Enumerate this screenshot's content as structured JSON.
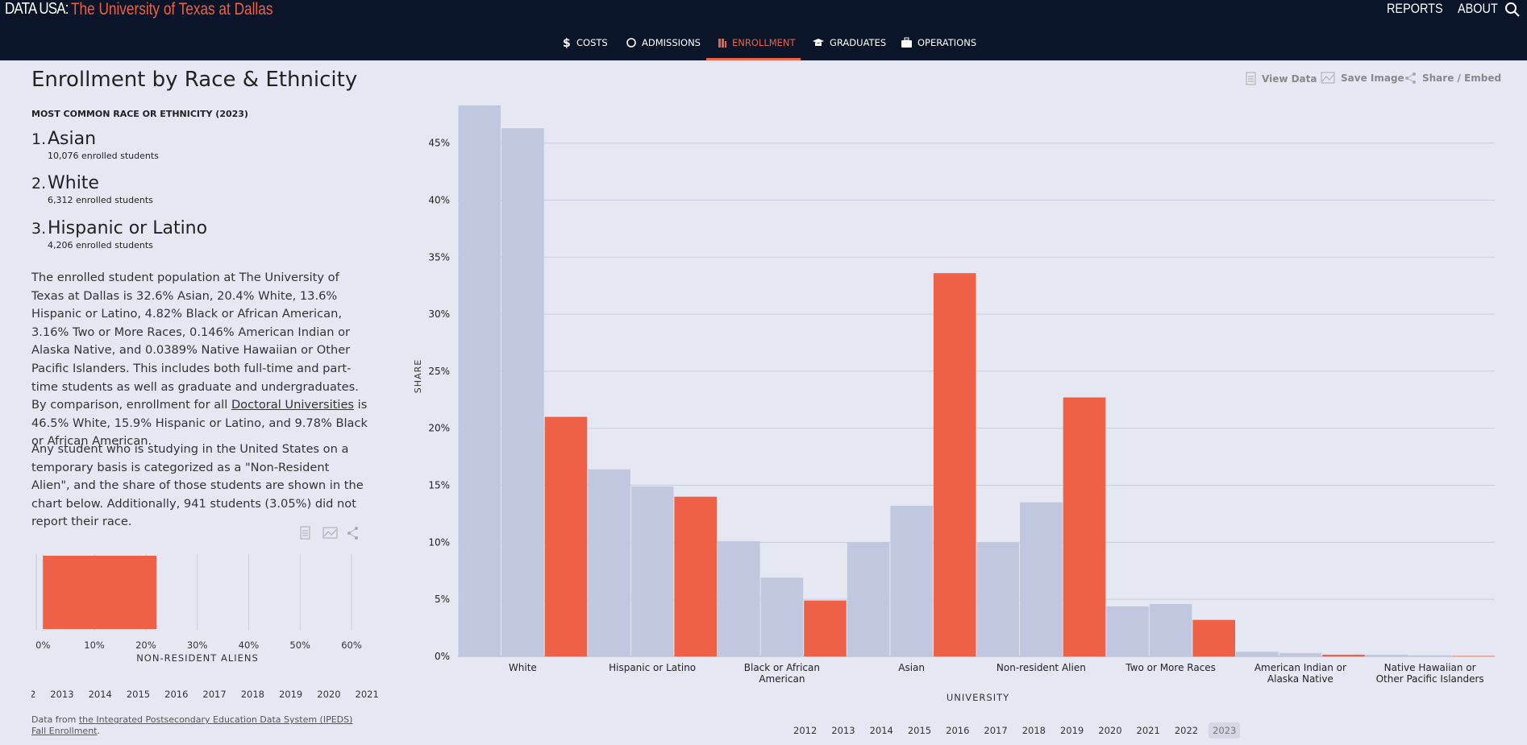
{
  "header": {
    "logo": "DATA USA:",
    "title": "The University of Texas at Dallas",
    "links": [
      "REPORTS",
      "ABOUT"
    ]
  },
  "nav": [
    "COSTS",
    "ADMISSIONS",
    "ENROLLMENT",
    "GRADUATES",
    "OPERATIONS"
  ],
  "section": {
    "title": "Enrollment by Race & Ethnicity",
    "toolbar": [
      "View Data",
      "Save Image",
      "Share / Embed"
    ],
    "ranking_title": "MOST COMMON RACE OR ETHNICITY (2023)",
    "ranking": [
      {
        "rank": "1.",
        "name": "Asian",
        "detail": "10,076 enrolled students"
      },
      {
        "rank": "2.",
        "name": "White",
        "detail": "6,312 enrolled students"
      },
      {
        "rank": "3.",
        "name": "Hispanic or Latino",
        "detail": "4,206 enrolled students"
      }
    ],
    "paragraph_1": [
      "The enrolled student population at The University of Texas at Dallas is 32.6% Asian, 20.4% White, 13.6% Hispanic or Latino, 4.82% Black or African American, 3.16% Two or More Races, 0.146% American Indian or Alaska Native, and 0.0389% Native Hawaiian or Other Pacific Islanders. This includes both full-time and part-time students as well as graduate and undergraduates. By comparison, enrollment for all ",
      "Doctoral Universities",
      " is 46.5% White, 15.9% Hispanic or Latino, and 9.78% Black or African American."
    ],
    "paragraph_2": "Any student who is studying in the United States on a temporary basis is categorized as a \"Non-Resident Alien\", and the share of those students are shown in the chart below. Additionally, 941 students (3.05%) did not report their race.",
    "source": [
      "Data from ",
      "the Integrated Postsecondary Education Data System (IPEDS)",
      " ",
      "Fall Enrollment",
      "."
    ]
  },
  "years": [
    "2012",
    "2013",
    "2014",
    "2015",
    "2016",
    "2017",
    "2018",
    "2019",
    "2020",
    "2021",
    "2022",
    "2023"
  ],
  "chart_data": [
    {
      "type": "bar",
      "x_label": "UNIVERSITY",
      "y_label": "SHARE",
      "categories": [
        "White",
        "Hispanic or Latino",
        "Black or African American",
        "Asian",
        "Non-resident Alien",
        "Two or More Races",
        "American Indian or Alaska Native",
        "Native Hawaiian or Other Pacific Islanders"
      ],
      "series": [
        {
          "color": "#c0c7df",
          "values": [
            48.3,
            16.4,
            10.1,
            10.0,
            10.0,
            4.4,
            0.4,
            0.15
          ]
        },
        {
          "color": "#c0c7df",
          "values": [
            46.3,
            14.9,
            6.9,
            13.2,
            13.5,
            4.6,
            0.3,
            0.1
          ]
        },
        {
          "color": "#ef6146",
          "values": [
            21.0,
            14.0,
            4.9,
            33.6,
            22.7,
            3.2,
            0.15,
            0.04
          ]
        }
      ],
      "ylim": [
        0,
        49
      ],
      "yticks": [
        {
          "value": 0,
          "label": "0%"
        },
        {
          "value": 5,
          "label": "5%"
        },
        {
          "value": 10,
          "label": "10%"
        },
        {
          "value": 15,
          "label": "15%"
        },
        {
          "value": 20,
          "label": "20%"
        },
        {
          "value": 25,
          "label": "25%"
        },
        {
          "value": 30,
          "label": "30%"
        },
        {
          "value": 35,
          "label": "35%"
        },
        {
          "value": 40,
          "label": "40%"
        },
        {
          "value": 45,
          "label": "45%"
        }
      ],
      "grid": true
    },
    {
      "type": "bar",
      "orientation": "horizontal",
      "x_label": "NON-RESIDENT ALIENS",
      "values": [
        22.1
      ],
      "color": "#ef6146",
      "xlim": [
        -1.3,
        60
      ],
      "xticks": [
        {
          "value": 0,
          "label": "0%"
        },
        {
          "value": 10,
          "label": "10%"
        },
        {
          "value": 20,
          "label": "20%"
        },
        {
          "value": 30,
          "label": "30%"
        },
        {
          "value": 40,
          "label": "40%"
        },
        {
          "value": 50,
          "label": "50%"
        },
        {
          "value": 60,
          "label": "60%"
        }
      ],
      "grid": true
    }
  ]
}
